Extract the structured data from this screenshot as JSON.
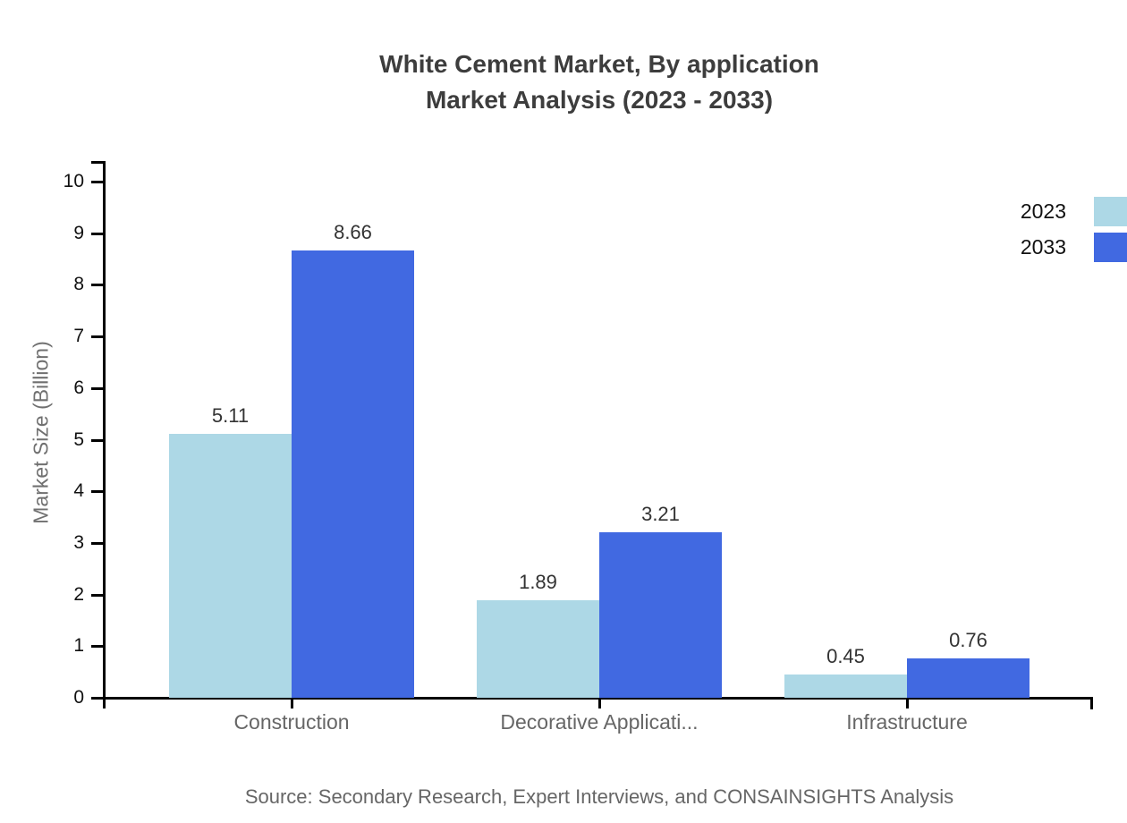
{
  "title": {
    "line1": "White Cement Market, By application",
    "line2": "Market Analysis (2023 - 2033)"
  },
  "source": "Source: Secondary Research, Expert Interviews, and CONSAINSIGHTS Analysis",
  "colors": {
    "series_2023": "#ADD8E6",
    "series_2033": "#4169E1",
    "axis": "#000000",
    "title_text": "#3d3d3d",
    "tick_label": "#111111",
    "value_label": "#333333",
    "category_label": "#666666",
    "axis_title": "#707070",
    "source_text": "#666666"
  },
  "chart_data": {
    "type": "bar",
    "title": "White Cement Market, By application Market Analysis (2023 - 2033)",
    "categories": [
      "Construction",
      "Decorative Applicati...",
      "Infrastructure"
    ],
    "series": [
      {
        "name": "2023",
        "color": "#ADD8E6",
        "values": [
          5.11,
          1.89,
          0.45
        ],
        "labels": [
          "5.11",
          "1.89",
          "0.45"
        ]
      },
      {
        "name": "2033",
        "color": "#4169E1",
        "values": [
          8.66,
          3.21,
          0.76
        ],
        "labels": [
          "8.66",
          "3.21",
          "0.76"
        ]
      }
    ],
    "xlabel": "",
    "ylabel": "Market Size (Billion)",
    "ylim": [
      0,
      10
    ],
    "ytick_step": 1,
    "ytick_labels": [
      "0",
      "1",
      "2",
      "3",
      "4",
      "5",
      "6",
      "7",
      "8",
      "9",
      "10"
    ],
    "grid": false,
    "legend_position": "top-right"
  }
}
